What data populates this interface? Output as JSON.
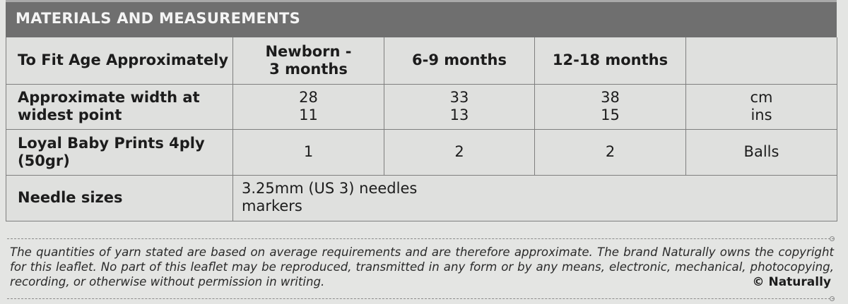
{
  "header": {
    "title": "MATERIALS AND MEASUREMENTS"
  },
  "table": {
    "age_row": {
      "label": "To Fit Age Approximately",
      "sizes": [
        {
          "line1": "Newborn -",
          "line2": "3 months"
        },
        {
          "line1": "6-9 months",
          "line2": ""
        },
        {
          "line1": "12-18 months",
          "line2": ""
        }
      ],
      "unit": ""
    },
    "width_row": {
      "label_line1": "Approximate width at",
      "label_line2": "widest point",
      "values": [
        {
          "cm": "28",
          "ins": "11"
        },
        {
          "cm": "33",
          "ins": "13"
        },
        {
          "cm": "38",
          "ins": "15"
        }
      ],
      "unit_cm": "cm",
      "unit_ins": "ins"
    },
    "yarn_row": {
      "label_line1": "Loyal Baby Prints 4ply",
      "label_line2": "(50gr)",
      "values": [
        "1",
        "2",
        "2"
      ],
      "unit": "Balls"
    },
    "needle_row": {
      "label": "Needle sizes",
      "line1": "3.25mm (US 3) needles",
      "line2": "markers"
    }
  },
  "footer": {
    "disclaimer": "The quantities of yarn stated are based on average requirements and are therefore approximate. The brand Naturally owns the copyright for this leaflet. No part of this leaflet may be reproduced, transmitted in any form or by any means, electronic, mechanical, photocopying, recording, or otherwise without permission in writing.",
    "copyright": "© Naturally"
  }
}
